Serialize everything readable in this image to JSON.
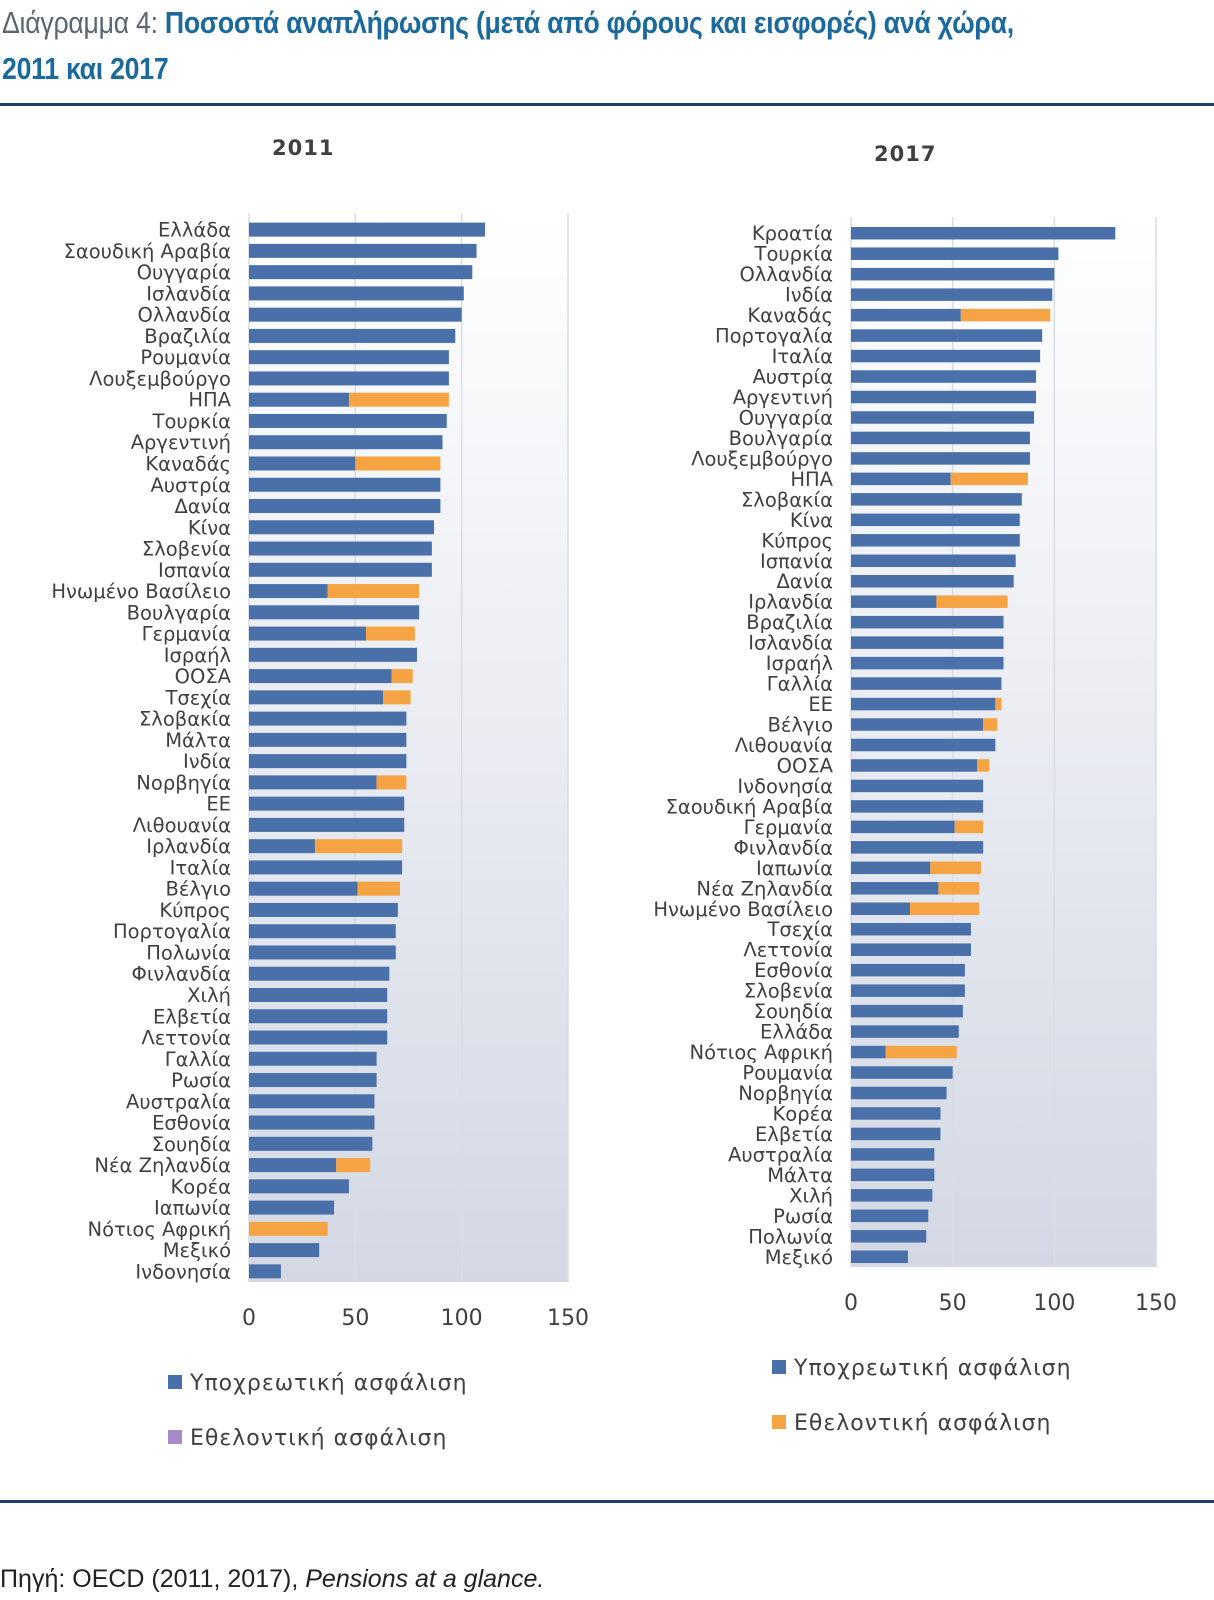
{
  "header": {
    "prefix": "Διάγραμμα 4:",
    "title": "Ποσοστά αναπλήρωσης (μετά από φόρους και εισφορές) ανά χώρα, 2011 και 2017"
  },
  "colors": {
    "mandatory": "#4a70a9",
    "voluntary": "#f5a343",
    "voluntary_legend_left": "#a68bc8",
    "grid": "#d9dde3",
    "label": "#404040",
    "background_top": "#ffffff",
    "background_bottom": "#d3d8e4"
  },
  "source": {
    "label": "Πηγή: OECD (2011, 2017),",
    "publication": "Pensions at a glance."
  },
  "chart_data": [
    {
      "type": "bar",
      "orientation": "horizontal",
      "stacked": true,
      "title": "2011",
      "xlim": [
        0,
        150
      ],
      "xticks": [
        0,
        50,
        100,
        150
      ],
      "legend": [
        "Υποχρεωτική ασφάλιση",
        "Εθελοντική ασφάλιση"
      ],
      "categories": [
        "Ελλάδα",
        "Σαουδική Αραβία",
        "Ουγγαρία",
        "Ισλανδία",
        "Ολλανδία",
        "Βραζιλία",
        "Ρουμανία",
        "Λουξεμβούργο",
        "ΗΠΑ",
        "Τουρκία",
        "Αργεντινή",
        "Καναδάς",
        "Αυστρία",
        "Δανία",
        "Κίνα",
        "Σλοβενία",
        "Ισπανία",
        "Ηνωμένο Βασίλειο",
        "Βουλγαρία",
        "Γερμανία",
        "Ισραήλ",
        "ΟΟΣΑ",
        "Τσεχία",
        "Σλοβακία",
        "Μάλτα",
        "Ινδία",
        "Νορβηγία",
        "ΕΕ",
        "Λιθουανία",
        "Ιρλανδία",
        "Ιταλία",
        "Βέλγιο",
        "Κύπρος",
        "Πορτογαλία",
        "Πολωνία",
        "Φινλανδία",
        "Χιλή",
        "Ελβετία",
        "Λεττονία",
        "Γαλλία",
        "Ρωσία",
        "Αυστραλία",
        "Εσθονία",
        "Σουηδία",
        "Νέα Ζηλανδία",
        "Κορέα",
        "Ιαπωνία",
        "Νότιος Αφρική",
        "Μεξικό",
        "Ινδονησία"
      ],
      "series": [
        {
          "name": "Υποχρεωτική ασφάλιση",
          "values": [
            111,
            107,
            105,
            101,
            100,
            97,
            94,
            94,
            47,
            93,
            91,
            50,
            90,
            90,
            87,
            86,
            86,
            37,
            80,
            55,
            79,
            67,
            63,
            74,
            74,
            74,
            60,
            73,
            73,
            31,
            72,
            51,
            70,
            69,
            69,
            66,
            65,
            65,
            65,
            60,
            60,
            59,
            59,
            58,
            41,
            47,
            40,
            0,
            33,
            15
          ]
        },
        {
          "name": "Εθελοντική ασφάλιση",
          "values": [
            0,
            0,
            0,
            0,
            0,
            0,
            0,
            0,
            47,
            0,
            0,
            40,
            0,
            0,
            0,
            0,
            0,
            43,
            0,
            23,
            0,
            10,
            13,
            0,
            0,
            0,
            14,
            0,
            0,
            41,
            0,
            20,
            0,
            0,
            0,
            0,
            0,
            0,
            0,
            0,
            0,
            0,
            0,
            0,
            16,
            0,
            0,
            37,
            0,
            0
          ]
        }
      ]
    },
    {
      "type": "bar",
      "orientation": "horizontal",
      "stacked": true,
      "title": "2017",
      "xlim": [
        0,
        150
      ],
      "xticks": [
        0,
        50,
        100,
        150
      ],
      "legend": [
        "Υποχρεωτική ασφάλιση",
        "Εθελοντική ασφάλιση"
      ],
      "categories": [
        "Κροατία",
        "Τουρκία",
        "Ολλανδία",
        "Ινδία",
        "Καναδάς",
        "Πορτογαλία",
        "Ιταλία",
        "Αυστρία",
        "Αργεντινή",
        "Ουγγαρία",
        "Βουλγαρία",
        "Λουξεμβούργο",
        "ΗΠΑ",
        "Σλοβακία",
        "Κίνα",
        "Κύπρος",
        "Ισπανία",
        "Δανία",
        "Ιρλανδία",
        "Βραζιλία",
        "Ισλανδία",
        "Ισραήλ",
        "Γαλλία",
        "ΕΕ",
        "Βέλγιο",
        "Λιθουανία",
        "ΟΟΣΑ",
        "Ινδονησία",
        "Σαουδική Αραβία",
        "Γερμανία",
        "Φινλανδία",
        "Ιαπωνία",
        "Νέα Ζηλανδία",
        "Ηνωμένο Βασίλειο",
        "Τσεχία",
        "Λεττονία",
        "Εσθονία",
        "Σλοβενία",
        "Σουηδία",
        "Ελλάδα",
        "Νότιος Αφρική",
        "Ρουμανία",
        "Νορβηγία",
        "Κορέα",
        "Ελβετία",
        "Αυστραλία",
        "Μάλτα",
        "Χιλή",
        "Ρωσία",
        "Πολωνία",
        "Μεξικό"
      ],
      "series": [
        {
          "name": "Υποχρεωτική ασφάλιση",
          "values": [
            130,
            102,
            100,
            99,
            54,
            94,
            93,
            91,
            91,
            90,
            88,
            88,
            49,
            84,
            83,
            83,
            81,
            80,
            42,
            75,
            75,
            75,
            74,
            71,
            65,
            71,
            62,
            65,
            65,
            51,
            65,
            39,
            43,
            29,
            59,
            59,
            56,
            56,
            55,
            53,
            17,
            50,
            47,
            44,
            44,
            41,
            41,
            40,
            38,
            37,
            28
          ]
        },
        {
          "name": "Εθελοντική ασφάλιση",
          "values": [
            0,
            0,
            0,
            0,
            44,
            0,
            0,
            0,
            0,
            0,
            0,
            0,
            38,
            0,
            0,
            0,
            0,
            0,
            35,
            0,
            0,
            0,
            0,
            3,
            7,
            0,
            6,
            0,
            0,
            14,
            0,
            25,
            20,
            34,
            0,
            0,
            0,
            0,
            0,
            0,
            35,
            0,
            0,
            0,
            0,
            0,
            0,
            0,
            0,
            0,
            0
          ]
        }
      ]
    }
  ]
}
